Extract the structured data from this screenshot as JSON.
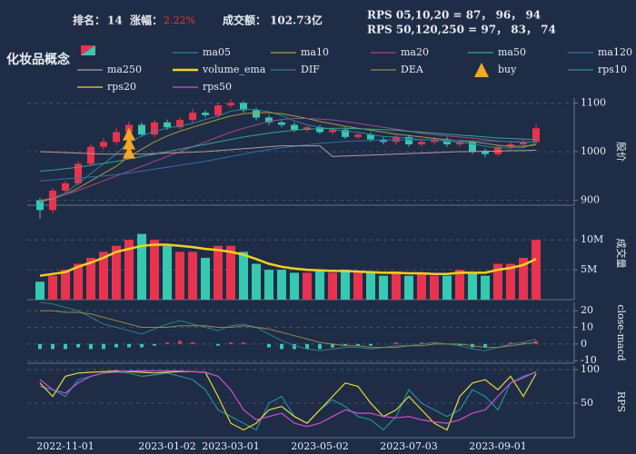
{
  "header": {
    "rank_label": "排名：",
    "rank": "14",
    "change_label": "涨幅：",
    "change": "2.22%",
    "turnover_label": "成交额：",
    "turnover": "102.73亿",
    "rps_short": "RPS 05,10,20 = 87， 96， 94",
    "rps_long": "RPS 50,120,250 = 97， 83， 74",
    "title": "化妆品概念"
  },
  "chart_data": [
    {
      "type": "candlestick",
      "categories": [
        null,
        null,
        "2022-11-01",
        null,
        null,
        null,
        null,
        null,
        null,
        null,
        "2023-01-02",
        null,
        null,
        null,
        null,
        "2023-03-01",
        null,
        null,
        null,
        null,
        null,
        null,
        "2023-05-02",
        null,
        null,
        null,
        null,
        null,
        null,
        "2023-07-03",
        null,
        null,
        null,
        null,
        null,
        null,
        "2023-09-01",
        null,
        null,
        null
      ],
      "open": [
        900,
        880,
        920,
        935,
        975,
        1010,
        1020,
        1040,
        1055,
        1035,
        1060,
        1050,
        1065,
        1080,
        1075,
        1095,
        1100,
        1085,
        1070,
        1060,
        1055,
        1045,
        1050,
        1040,
        1045,
        1030,
        1035,
        1025,
        1020,
        1030,
        1015,
        1020,
        1025,
        1015,
        1020,
        1000,
        995,
        1010,
        1015,
        1020
      ],
      "high": [
        905,
        925,
        940,
        980,
        1015,
        1028,
        1048,
        1062,
        1060,
        1065,
        1066,
        1070,
        1088,
        1085,
        1100,
        1108,
        1104,
        1090,
        1075,
        1064,
        1060,
        1053,
        1055,
        1048,
        1050,
        1040,
        1040,
        1030,
        1034,
        1035,
        1025,
        1030,
        1030,
        1025,
        1024,
        1006,
        1014,
        1020,
        1026,
        1055
      ],
      "low": [
        862,
        874,
        912,
        930,
        970,
        1004,
        1014,
        1034,
        1030,
        1030,
        1045,
        1046,
        1060,
        1070,
        1070,
        1090,
        1080,
        1064,
        1054,
        1050,
        1040,
        1040,
        1036,
        1035,
        1026,
        1026,
        1020,
        1015,
        1015,
        1010,
        1010,
        1015,
        1010,
        1010,
        995,
        988,
        990,
        1004,
        1010,
        1015
      ],
      "close": [
        880,
        920,
        935,
        975,
        1010,
        1020,
        1040,
        1055,
        1035,
        1060,
        1050,
        1065,
        1080,
        1075,
        1095,
        1100,
        1085,
        1070,
        1060,
        1055,
        1045,
        1050,
        1040,
        1045,
        1030,
        1035,
        1025,
        1020,
        1030,
        1015,
        1020,
        1025,
        1015,
        1020,
        1000,
        995,
        1010,
        1015,
        1020,
        1048
      ],
      "up_color": "#e8334f",
      "down_color": "#37c8b0",
      "series": [
        {
          "name": "ma05",
          "color": "#2a8596",
          "values": [
            895,
            905,
            915,
            935,
            955,
            975,
            995,
            1020,
            1032,
            1042,
            1048,
            1053,
            1058,
            1066,
            1073,
            1083,
            1087,
            1086,
            1082,
            1074,
            1063,
            1055,
            1050,
            1046,
            1042,
            1040,
            1035,
            1031,
            1030,
            1027,
            1025,
            1024,
            1021,
            1019,
            1016,
            1011,
            1008,
            1008,
            1008,
            1018
          ]
        },
        {
          "name": "ma10",
          "color": "#a89b3c",
          "values": [
            898,
            903,
            912,
            925,
            940,
            955,
            970,
            990,
            1005,
            1020,
            1032,
            1042,
            1050,
            1058,
            1066,
            1073,
            1078,
            1080,
            1080,
            1078,
            1073,
            1068,
            1062,
            1057,
            1052,
            1048,
            1044,
            1040,
            1036,
            1033,
            1030,
            1027,
            1025,
            1022,
            1020,
            1017,
            1013,
            1011,
            1011,
            1014
          ]
        },
        {
          "name": "ma20",
          "color": "#a2478e",
          "values": [
            900,
            905,
            912,
            920,
            930,
            940,
            950,
            960,
            970,
            980,
            990,
            1000,
            1010,
            1020,
            1030,
            1040,
            1048,
            1055,
            1062,
            1066,
            1068,
            1068,
            1067,
            1065,
            1062,
            1058,
            1054,
            1050,
            1046,
            1042,
            1038,
            1035,
            1032,
            1030,
            1028,
            1025,
            1022,
            1020,
            1019,
            1020
          ]
        },
        {
          "name": "ma50",
          "color": "#3aa58a",
          "values": [
            960,
            962,
            965,
            968,
            972,
            976,
            980,
            985,
            990,
            995,
            1000,
            1005,
            1010,
            1015,
            1020,
            1025,
            1030,
            1034,
            1038,
            1041,
            1044,
            1046,
            1047,
            1048,
            1048,
            1047,
            1046,
            1045,
            1044,
            1042,
            1040,
            1038,
            1036,
            1034,
            1032,
            1030,
            1028,
            1027,
            1026,
            1025
          ]
        },
        {
          "name": "ma120",
          "color": "#2f6fa6",
          "values": [
            940,
            942,
            944,
            946,
            948,
            950,
            953,
            956,
            960,
            964,
            968,
            972,
            976,
            980,
            985,
            990,
            995,
            1000,
            1004,
            1008,
            1011,
            1014,
            1017,
            1019,
            1021,
            1022,
            1023,
            1024,
            1024,
            1024,
            1024,
            1024,
            1023,
            1023,
            1022,
            1022,
            1021,
            1021,
            1020,
            1020
          ]
        },
        {
          "name": "ma250",
          "color": "#b49a9a",
          "values": [
            1000,
            999,
            998,
            997,
            996,
            995,
            995,
            995,
            995,
            996,
            997,
            998,
            999,
            1000,
            1002,
            1004,
            1006,
            1008,
            1010,
            1012,
            1012,
            1012,
            1012,
            990,
            991,
            992,
            993,
            994,
            995,
            996,
            997,
            998,
            999,
            1000,
            1000,
            1001,
            1001,
            1002,
            1002,
            1003
          ]
        },
        {
          "name": "buy",
          "color": "#f5a623",
          "marker": "triangle",
          "values": [
            null,
            null,
            null,
            null,
            null,
            null,
            null,
            1010,
            null,
            null,
            null,
            null,
            null,
            null,
            null,
            null,
            null,
            null,
            null,
            null,
            null,
            null,
            null,
            null,
            null,
            null,
            null,
            null,
            null,
            null,
            null,
            null,
            null,
            null,
            null,
            null,
            null,
            null,
            null,
            null
          ]
        }
      ],
      "ylim": [
        890,
        1110
      ],
      "yticks": [
        900,
        1000,
        1100
      ],
      "y_label": "股价",
      "grid": true
    },
    {
      "type": "bar",
      "values": [
        3000000,
        4000000,
        5000000,
        6000000,
        7000000,
        8000000,
        9000000,
        10000000,
        11000000,
        10000000,
        9000000,
        8000000,
        8000000,
        7000000,
        9000000,
        9000000,
        8000000,
        6000000,
        5000000,
        5000000,
        4500000,
        4500000,
        5000000,
        4500000,
        5000000,
        4500000,
        4500000,
        4000000,
        4500000,
        4000000,
        4500000,
        4000000,
        4000000,
        5000000,
        4500000,
        4000000,
        6000000,
        6000000,
        7000000,
        10000000
      ],
      "series": [
        {
          "name": "volume_ema",
          "color": "#f5d021",
          "values": [
            4000000,
            4300000,
            4600000,
            5500000,
            6200000,
            7000000,
            8000000,
            8500000,
            9000000,
            9200000,
            9200000,
            9000000,
            8800000,
            8500000,
            8300000,
            8000000,
            7500000,
            6800000,
            6000000,
            5500000,
            5200000,
            5000000,
            4900000,
            4800000,
            4800000,
            4700000,
            4600000,
            4500000,
            4500000,
            4400000,
            4400000,
            4300000,
            4300000,
            4500000,
            4500000,
            4500000,
            5000000,
            5300000,
            5800000,
            6800000
          ]
        }
      ],
      "ylim": [
        0,
        15500000
      ],
      "yticks": [
        {
          "value": 5000000,
          "label": "5M"
        },
        {
          "value": 10000000,
          "label": "10M"
        }
      ],
      "y_label": "成交量",
      "grid": true
    },
    {
      "type": "macd",
      "series": [
        {
          "name": "DIF",
          "color": "#2a7f8e",
          "values": [
            25,
            24,
            22,
            20,
            16,
            12,
            10,
            8,
            6,
            9,
            12,
            14,
            12,
            10,
            8,
            11,
            12,
            10,
            6,
            2,
            -1,
            -3,
            -4,
            -3,
            -2,
            -2,
            -3,
            -2,
            -1,
            -1,
            0,
            1,
            0,
            -1,
            -3,
            -4,
            -2,
            0,
            1,
            3
          ]
        },
        {
          "name": "DEA",
          "color": "#8f8a4a",
          "values": [
            20,
            20,
            19,
            19,
            18,
            16,
            14,
            12,
            10,
            10,
            10,
            11,
            11,
            11,
            10,
            10,
            11,
            10,
            9,
            7,
            5,
            3,
            1,
            0,
            -1,
            -1,
            -2,
            -2,
            -2,
            -1,
            -1,
            0,
            0,
            0,
            -1,
            -2,
            -2,
            -1,
            0,
            1
          ]
        }
      ],
      "histogram": [
        -3,
        -3,
        -3,
        -2,
        -3,
        -3,
        -2,
        -2,
        -2,
        -1,
        1,
        2,
        1,
        0,
        -1,
        1,
        1,
        0,
        -2,
        -3,
        -3,
        -3,
        -3,
        -2,
        -1,
        -1,
        -1,
        0,
        1,
        0,
        1,
        1,
        0,
        -1,
        -2,
        -2,
        0,
        1,
        1,
        2
      ],
      "ylim": [
        -11.5,
        25
      ],
      "yticks": [
        -10,
        0,
        10,
        20
      ],
      "y_label": "close-macd",
      "grid": true
    },
    {
      "type": "line",
      "series": [
        {
          "name": "rps10",
          "color": "#1f8fa0",
          "values": [
            75,
            70,
            60,
            85,
            90,
            95,
            96,
            95,
            90,
            92,
            95,
            90,
            85,
            70,
            40,
            30,
            20,
            10,
            50,
            60,
            30,
            20,
            40,
            55,
            45,
            30,
            25,
            10,
            30,
            70,
            50,
            40,
            30,
            40,
            70,
            60,
            40,
            80,
            90,
            96
          ]
        },
        {
          "name": "rps20",
          "color": "#e8d83a",
          "values": [
            80,
            60,
            90,
            95,
            96,
            97,
            98,
            97,
            96,
            95,
            96,
            97,
            97,
            96,
            60,
            20,
            10,
            20,
            40,
            45,
            30,
            20,
            40,
            60,
            80,
            75,
            50,
            30,
            40,
            60,
            40,
            20,
            10,
            60,
            80,
            85,
            70,
            90,
            60,
            94
          ]
        },
        {
          "name": "rps50",
          "color": "#d24fd0",
          "values": [
            85,
            70,
            65,
            80,
            90,
            95,
            97,
            98,
            98,
            98,
            98,
            98,
            97,
            96,
            90,
            70,
            40,
            25,
            30,
            35,
            20,
            15,
            20,
            30,
            40,
            35,
            35,
            30,
            28,
            30,
            25,
            22,
            20,
            25,
            35,
            40,
            60,
            80,
            88,
            97
          ]
        }
      ],
      "ylim": [
        -1.5,
        105.5
      ],
      "yticks": [
        50,
        100
      ],
      "y_label": "RPS",
      "grid": true
    }
  ]
}
